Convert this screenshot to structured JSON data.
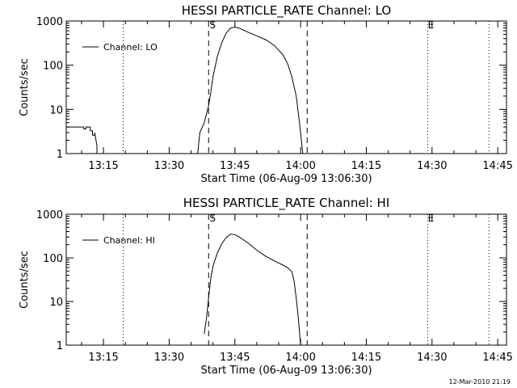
{
  "chart_data": [
    {
      "type": "line",
      "title": "HESSI PARTICLE_RATE Channel: LO",
      "xlabel": "Start Time (06-Aug-09 13:06:30)",
      "ylabel": "Counts/sec",
      "yscale": "log",
      "ylim": [
        1,
        1000
      ],
      "xlim": [
        "13:06:30",
        "14:47:00"
      ],
      "x_ticks": [
        "13:15",
        "13:30",
        "13:45",
        "14:00",
        "14:15",
        "14:30",
        "14:45"
      ],
      "y_ticks": [
        "1",
        "10",
        "100",
        "1000"
      ],
      "legend": {
        "label": "Channel: LO",
        "position": "top-left"
      },
      "markers": {
        "start": "S",
        "end": "E"
      },
      "dashed_lines_x": [
        "13:39:00",
        "14:01:30"
      ],
      "dotted_lines_x": [
        "13:19:30",
        "14:29:00",
        "14:43:00"
      ],
      "series": [
        {
          "name": "Channel: LO",
          "segments": [
            [
              [
                "13:06:30",
                4
              ],
              [
                "13:10:30",
                4
              ],
              [
                "13:10:30",
                3.6
              ],
              [
                "13:11:00",
                3.6
              ],
              [
                "13:11:00",
                4
              ],
              [
                "13:12:00",
                4
              ],
              [
                "13:12:00",
                3.3
              ],
              [
                "13:12:30",
                3.3
              ],
              [
                "13:12:30",
                2.6
              ],
              [
                "13:13:00",
                2.6
              ],
              [
                "13:13:00",
                3
              ],
              [
                "13:13:30",
                1.5
              ],
              [
                "13:13:30",
                1
              ]
            ],
            [
              [
                "13:36:30",
                1
              ],
              [
                "13:37:00",
                3
              ],
              [
                "13:38:00",
                5
              ],
              [
                "13:39:00",
                12
              ],
              [
                "13:39:30",
                25
              ],
              [
                "13:40:00",
                55
              ],
              [
                "13:41:00",
                160
              ],
              [
                "13:42:00",
                320
              ],
              [
                "13:43:00",
                530
              ],
              [
                "13:44:00",
                690
              ],
              [
                "13:45:00",
                730
              ],
              [
                "13:46:00",
                690
              ],
              [
                "13:48:00",
                560
              ],
              [
                "13:50:00",
                460
              ],
              [
                "13:52:00",
                380
              ],
              [
                "13:54:00",
                280
              ],
              [
                "13:56:00",
                170
              ],
              [
                "13:57:00",
                110
              ],
              [
                "13:58:00",
                55
              ],
              [
                "13:59:00",
                20
              ],
              [
                "13:59:30",
                8
              ],
              [
                "14:00:00",
                3
              ],
              [
                "14:00:30",
                1
              ]
            ]
          ]
        }
      ]
    },
    {
      "type": "line",
      "title": "HESSI PARTICLE_RATE Channel: HI",
      "xlabel": "Start Time (06-Aug-09 13:06:30)",
      "ylabel": "Counts/sec",
      "yscale": "log",
      "ylim": [
        1,
        1000
      ],
      "xlim": [
        "13:06:30",
        "14:47:00"
      ],
      "x_ticks": [
        "13:15",
        "13:30",
        "13:45",
        "14:00",
        "14:15",
        "14:30",
        "14:45"
      ],
      "y_ticks": [
        "1",
        "10",
        "100",
        "1000"
      ],
      "legend": {
        "label": "Channel: HI",
        "position": "top-left"
      },
      "markers": {
        "start": "S",
        "end": "E"
      },
      "dashed_lines_x": [
        "13:39:00",
        "14:01:30"
      ],
      "dotted_lines_x": [
        "13:19:30",
        "14:29:00",
        "14:43:00"
      ],
      "series": [
        {
          "name": "Channel: HI",
          "segments": [
            [
              [
                "13:38:00",
                1.8
              ],
              [
                "13:38:30",
                4
              ],
              [
                "13:39:00",
                12
              ],
              [
                "13:39:30",
                35
              ],
              [
                "13:40:00",
                65
              ],
              [
                "13:41:00",
                130
              ],
              [
                "13:42:00",
                210
              ],
              [
                "13:43:00",
                290
              ],
              [
                "13:44:00",
                350
              ],
              [
                "13:45:00",
                340
              ],
              [
                "13:46:00",
                300
              ],
              [
                "13:48:00",
                220
              ],
              [
                "13:50:00",
                150
              ],
              [
                "13:52:00",
                110
              ],
              [
                "13:54:00",
                85
              ],
              [
                "13:56:00",
                68
              ],
              [
                "13:57:00",
                60
              ],
              [
                "13:58:00",
                48
              ],
              [
                "13:58:30",
                30
              ],
              [
                "13:59:00",
                12
              ],
              [
                "13:59:30",
                4
              ],
              [
                "14:00:00",
                1
              ]
            ]
          ]
        }
      ]
    }
  ],
  "footer": {
    "timestamp": "12-Mar-2010 21:19"
  }
}
